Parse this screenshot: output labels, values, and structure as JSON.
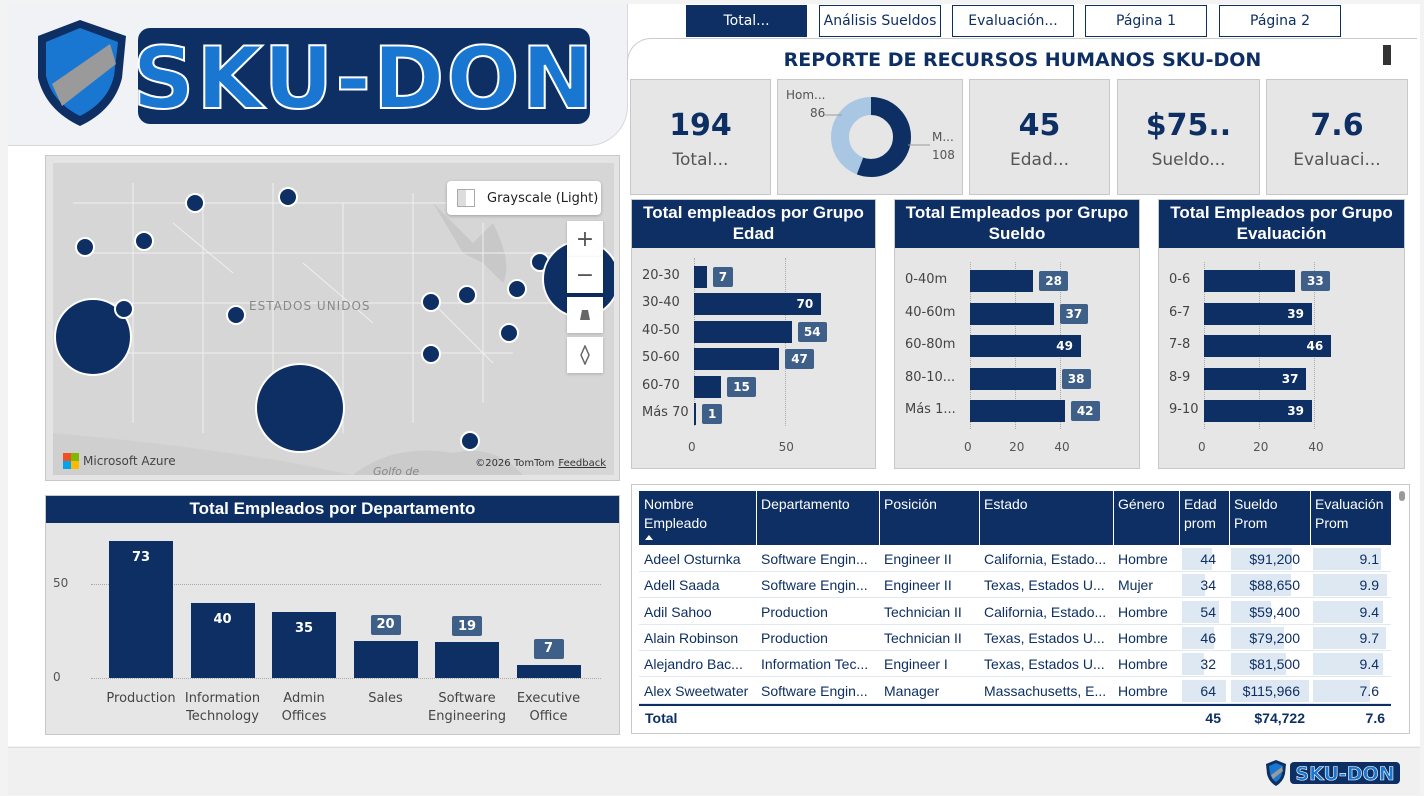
{
  "brand": {
    "name": "SKU-DON",
    "primary": "#0e2f63",
    "accent": "#1977d2",
    "bar_label_bg": "#3e5f88"
  },
  "nav": [
    {
      "label": "Total...",
      "active": true
    },
    {
      "label": "Análisis Sueldos",
      "active": false
    },
    {
      "label": "Evaluación...",
      "active": false
    },
    {
      "label": "Página 1",
      "active": false
    },
    {
      "label": "Página 2",
      "active": false
    }
  ],
  "report_title": "REPORTE DE RECURSOS HUMANOS SKU-DON",
  "kpis": {
    "total": {
      "value": "194",
      "label": "Total..."
    },
    "edad": {
      "value": "45",
      "label": "Edad..."
    },
    "sueldo": {
      "value": "$75..",
      "label": "Sueldo..."
    },
    "evaluacion": {
      "value": "7.6",
      "label": "Evaluaci..."
    }
  },
  "gender_donut": {
    "hombre_label": "Hom...",
    "hombre_value": "86",
    "mujer_label": "M...",
    "mujer_value": "108",
    "hombre_count": 86,
    "mujer_count": 108,
    "hombre_color": "#a9c6e3",
    "mujer_color": "#0e2f63"
  },
  "map": {
    "style_label": "Grayscale (Light)",
    "country_label": "ESTADOS UNIDOS",
    "gulf_label": "Golfo de",
    "provider": "Microsoft Azure",
    "attribution": "©2026 TomTom",
    "feedback": "Feedback",
    "zoom_in": "+",
    "zoom_out": "−"
  },
  "chart_data": [
    {
      "type": "bar",
      "orientation": "horizontal",
      "title": "Total empleados por Grupo Edad",
      "categories": [
        "20-30",
        "30-40",
        "40-50",
        "50-60",
        "60-70",
        "Más 70"
      ],
      "values": [
        7,
        70,
        54,
        47,
        15,
        1
      ],
      "xticks": [
        "0",
        "50"
      ],
      "xlim": [
        0,
        80
      ]
    },
    {
      "type": "bar",
      "orientation": "horizontal",
      "title": "Total Empleados por Grupo Sueldo",
      "categories": [
        "0-40m",
        "40-60m",
        "60-80m",
        "80-10...",
        "Más 1..."
      ],
      "values": [
        28,
        37,
        49,
        38,
        42
      ],
      "xticks": [
        "0",
        "20",
        "40"
      ],
      "xlim": [
        0,
        62
      ]
    },
    {
      "type": "bar",
      "orientation": "horizontal",
      "title": "Total Empleados por Grupo Evaluación",
      "categories": [
        "0-6",
        "6-7",
        "7-8",
        "8-9",
        "9-10"
      ],
      "values": [
        33,
        39,
        46,
        37,
        39
      ],
      "xticks": [
        "0",
        "20",
        "40"
      ],
      "xlim": [
        0,
        58
      ]
    },
    {
      "type": "bar",
      "orientation": "vertical",
      "title": "Total Empleados por Departamento",
      "categories": [
        "Production",
        "Information Technology",
        "Admin Offices",
        "Sales",
        "Software Engineering",
        "Executive Office"
      ],
      "values": [
        73,
        40,
        35,
        20,
        19,
        7
      ],
      "yticks": [
        "0",
        "50"
      ],
      "ylim": [
        0,
        80
      ]
    }
  ],
  "table": {
    "columns": [
      "Nombre Empleado",
      "Departamento",
      "Posición",
      "Estado",
      "Género",
      "Edad prom",
      "Sueldo Prom",
      "Evaluación Prom"
    ],
    "rows": [
      [
        "Adeel Osturnka",
        "Software Engin...",
        "Engineer II",
        "California, Estado...",
        "Hombre",
        "44",
        "$91,200",
        "9.1"
      ],
      [
        "Adell Saada",
        "Software Engin...",
        "Engineer II",
        "Texas, Estados U...",
        "Mujer",
        "34",
        "$88,650",
        "9.9"
      ],
      [
        "Adil Sahoo",
        "Production",
        "Technician II",
        "California, Estado...",
        "Hombre",
        "54",
        "$59,400",
        "9.4"
      ],
      [
        "Alain Robinson",
        "Production",
        "Technician II",
        "Texas, Estados U...",
        "Hombre",
        "46",
        "$79,200",
        "9.7"
      ],
      [
        "Alejandro Bac...",
        "Information Tec...",
        "Engineer I",
        "Texas, Estados U...",
        "Hombre",
        "32",
        "$81,500",
        "9.4"
      ],
      [
        "Alex Sweetwater",
        "Software Engin...",
        "Manager",
        "Massachusetts, E...",
        "Hombre",
        "64",
        "$115,966",
        "7.6"
      ]
    ],
    "total_label": "Total",
    "total_edad": "45",
    "total_sueldo": "$74,722",
    "total_eval": "7.6"
  }
}
